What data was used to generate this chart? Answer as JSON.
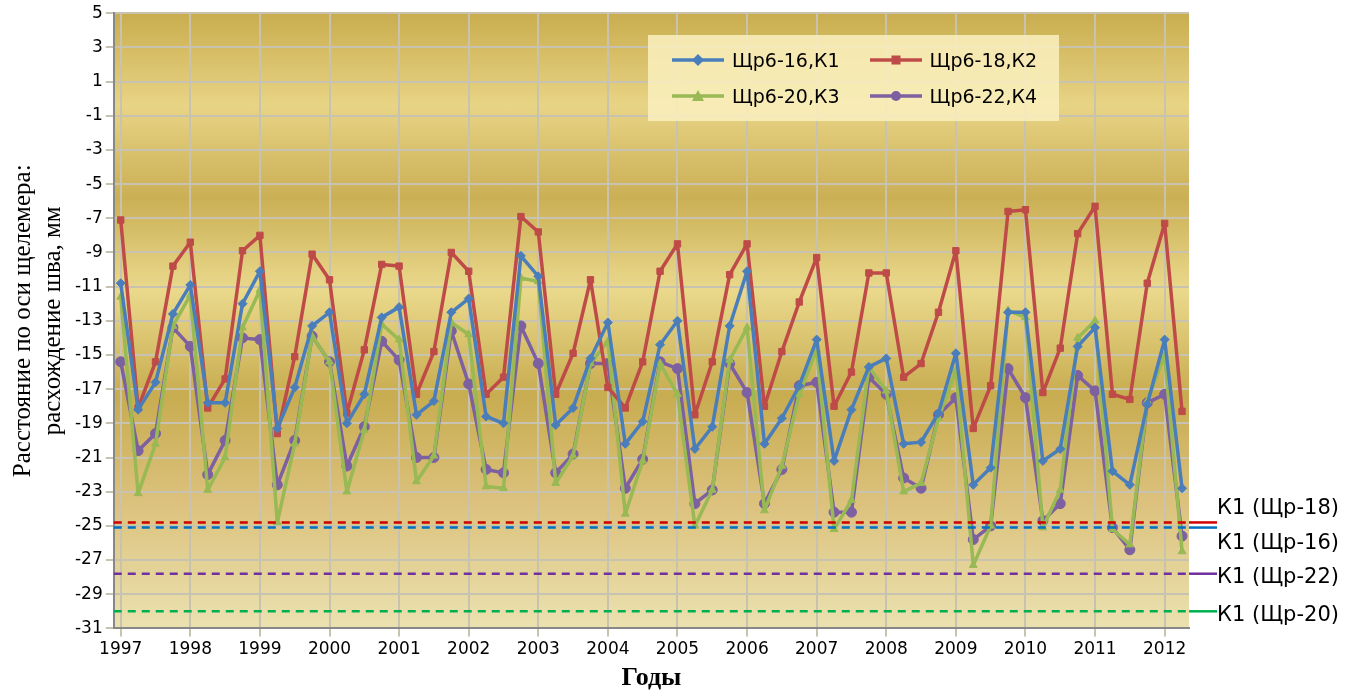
{
  "chart_data": {
    "type": "line",
    "ylabel": "Расстояние по оси щелемера:\nрасхождение шва, мм",
    "xlabel": "Годы",
    "x": [
      1997,
      1997.25,
      1997.5,
      1997.75,
      1998,
      1998.25,
      1998.5,
      1998.75,
      1999,
      1999.25,
      1999.5,
      1999.75,
      2000,
      2000.25,
      2000.5,
      2000.75,
      2001,
      2001.25,
      2001.5,
      2001.75,
      2002,
      2002.25,
      2002.5,
      2002.75,
      2003,
      2003.25,
      2003.5,
      2003.75,
      2004,
      2004.25,
      2004.5,
      2004.75,
      2005,
      2005.25,
      2005.5,
      2005.75,
      2006,
      2006.25,
      2006.5,
      2006.75,
      2007,
      2007.25,
      2007.5,
      2007.75,
      2008,
      2008.25,
      2008.5,
      2008.75,
      2009,
      2009.25,
      2009.5,
      2009.75,
      2010,
      2010.25,
      2010.5,
      2010.75,
      2011,
      2011.25,
      2011.5,
      2011.75,
      2012,
      2012.25
    ],
    "series": [
      {
        "name": "Щр6-16,К1",
        "color": "#4a7ebb",
        "marker": "diamond",
        "values": [
          -10.8,
          -18.2,
          -16.6,
          -12.6,
          -10.9,
          -17.8,
          -17.8,
          -12.0,
          -10.1,
          -19.3,
          -16.9,
          -13.3,
          -12.5,
          -19.0,
          -17.3,
          -12.8,
          -12.2,
          -18.5,
          -17.7,
          -12.5,
          -11.7,
          -18.6,
          -19.0,
          -9.2,
          -10.4,
          -19.1,
          -18.1,
          -15.2,
          -13.1,
          -20.2,
          -18.9,
          -14.4,
          -13.0,
          -20.5,
          -19.2,
          -13.3,
          -10.1,
          -20.2,
          -18.7,
          -16.8,
          -14.1,
          -21.2,
          -18.2,
          -15.7,
          -15.2,
          -20.2,
          -20.1,
          -18.4,
          -14.9,
          -22.6,
          -21.6,
          -12.5,
          -12.5,
          -21.2,
          -20.5,
          -14.5,
          -13.4,
          -21.8,
          -22.6,
          -17.9,
          -14.1,
          -22.8
        ]
      },
      {
        "name": "Щр6-18,К2",
        "color": "#be4b48",
        "marker": "square",
        "values": [
          -7.1,
          -18.1,
          -15.4,
          -9.8,
          -8.4,
          -18.1,
          -16.4,
          -8.9,
          -8.0,
          -19.6,
          -15.1,
          -9.1,
          -10.6,
          -18.4,
          -14.7,
          -9.7,
          -9.8,
          -17.3,
          -14.8,
          -9.0,
          -10.1,
          -17.3,
          -16.3,
          -6.9,
          -7.8,
          -17.3,
          -14.9,
          -10.6,
          -16.9,
          -18.1,
          -15.4,
          -10.1,
          -8.5,
          -18.5,
          -15.4,
          -10.3,
          -8.5,
          -18.0,
          -14.8,
          -11.9,
          -9.3,
          -18.0,
          -16.0,
          -10.2,
          -10.2,
          -16.3,
          -15.5,
          -12.5,
          -8.9,
          -19.3,
          -16.8,
          -6.6,
          -6.5,
          -17.2,
          -14.6,
          -7.9,
          -6.3,
          -17.3,
          -17.6,
          -10.8,
          -7.3,
          -18.3
        ]
      },
      {
        "name": "Щр6-20,К3",
        "color": "#98b954",
        "marker": "triangle",
        "values": [
          -11.6,
          -23.1,
          -20.2,
          -13.3,
          -11.5,
          -22.9,
          -21.0,
          -13.4,
          -11.2,
          -24.8,
          -20.2,
          -13.9,
          -15.4,
          -23.0,
          -19.4,
          -13.2,
          -14.1,
          -22.4,
          -20.9,
          -13.1,
          -13.8,
          -22.7,
          -22.8,
          -10.5,
          -10.7,
          -22.5,
          -20.9,
          -15.5,
          -14.2,
          -24.3,
          -21.2,
          -15.5,
          -17.3,
          -25.0,
          -22.9,
          -15.3,
          -13.4,
          -24.1,
          -21.5,
          -17.3,
          -14.7,
          -25.2,
          -23.5,
          -15.7,
          -17.1,
          -23.0,
          -22.5,
          -18.7,
          -15.9,
          -27.3,
          -25.0,
          -12.4,
          -12.8,
          -25.1,
          -22.9,
          -14.0,
          -13.0,
          -25.2,
          -26.1,
          -17.7,
          -15.0,
          -26.5
        ]
      },
      {
        "name": "Щр6-22,К4",
        "color": "#7d60a0",
        "marker": "circle",
        "values": [
          -15.4,
          -20.6,
          -19.6,
          -13.4,
          -14.5,
          -22.0,
          -20.0,
          -14.0,
          -14.1,
          -22.6,
          -20.0,
          -13.9,
          -15.4,
          -21.5,
          -19.2,
          -14.2,
          -15.3,
          -21.0,
          -21.0,
          -13.6,
          -16.7,
          -21.7,
          -21.9,
          -13.3,
          -15.5,
          -21.9,
          -20.8,
          -15.5,
          -15.5,
          -22.8,
          -21.1,
          -15.4,
          -15.8,
          -23.7,
          -22.9,
          -15.5,
          -17.2,
          -23.7,
          -21.7,
          -16.8,
          -16.6,
          -24.2,
          -24.2,
          -16.3,
          -17.3,
          -22.2,
          -22.8,
          -18.5,
          -17.5,
          -25.8,
          -25.0,
          -15.8,
          -17.5,
          -24.7,
          -23.7,
          -16.2,
          -17.1,
          -25.1,
          -26.4,
          -17.8,
          -17.3,
          -25.6
        ]
      }
    ],
    "xlim": [
      1996.9,
      2012.35
    ],
    "xticks": [
      1997,
      1998,
      1999,
      2000,
      2001,
      2002,
      2003,
      2004,
      2005,
      2006,
      2007,
      2008,
      2009,
      2010,
      2011,
      2012
    ],
    "ylim": [
      -31,
      5
    ],
    "yticks": [
      -31,
      -29,
      -27,
      -25,
      -23,
      -21,
      -19,
      -17,
      -15,
      -13,
      -11,
      -9,
      -7,
      -5,
      -3,
      -1,
      1,
      3,
      5
    ],
    "ref_lines": [
      {
        "axis": "y",
        "value": -24.8,
        "label": "К1 (Щр-18)",
        "color": "#d00000",
        "line_style": "dashed"
      },
      {
        "axis": "y",
        "value": -25.1,
        "label": "К1 (Щр-16)",
        "color": "#0070c0",
        "line_style": "dashed"
      },
      {
        "axis": "y",
        "value": -27.8,
        "label": "К1 (Щр-22)",
        "color": "#7030a0",
        "line_style": "dashed"
      },
      {
        "axis": "y",
        "value": -30.0,
        "label": "К1 (Щр-20)",
        "color": "#00b050",
        "line_style": "dashed"
      }
    ],
    "grid": true,
    "legend": "top right",
    "line_style": "solid"
  }
}
